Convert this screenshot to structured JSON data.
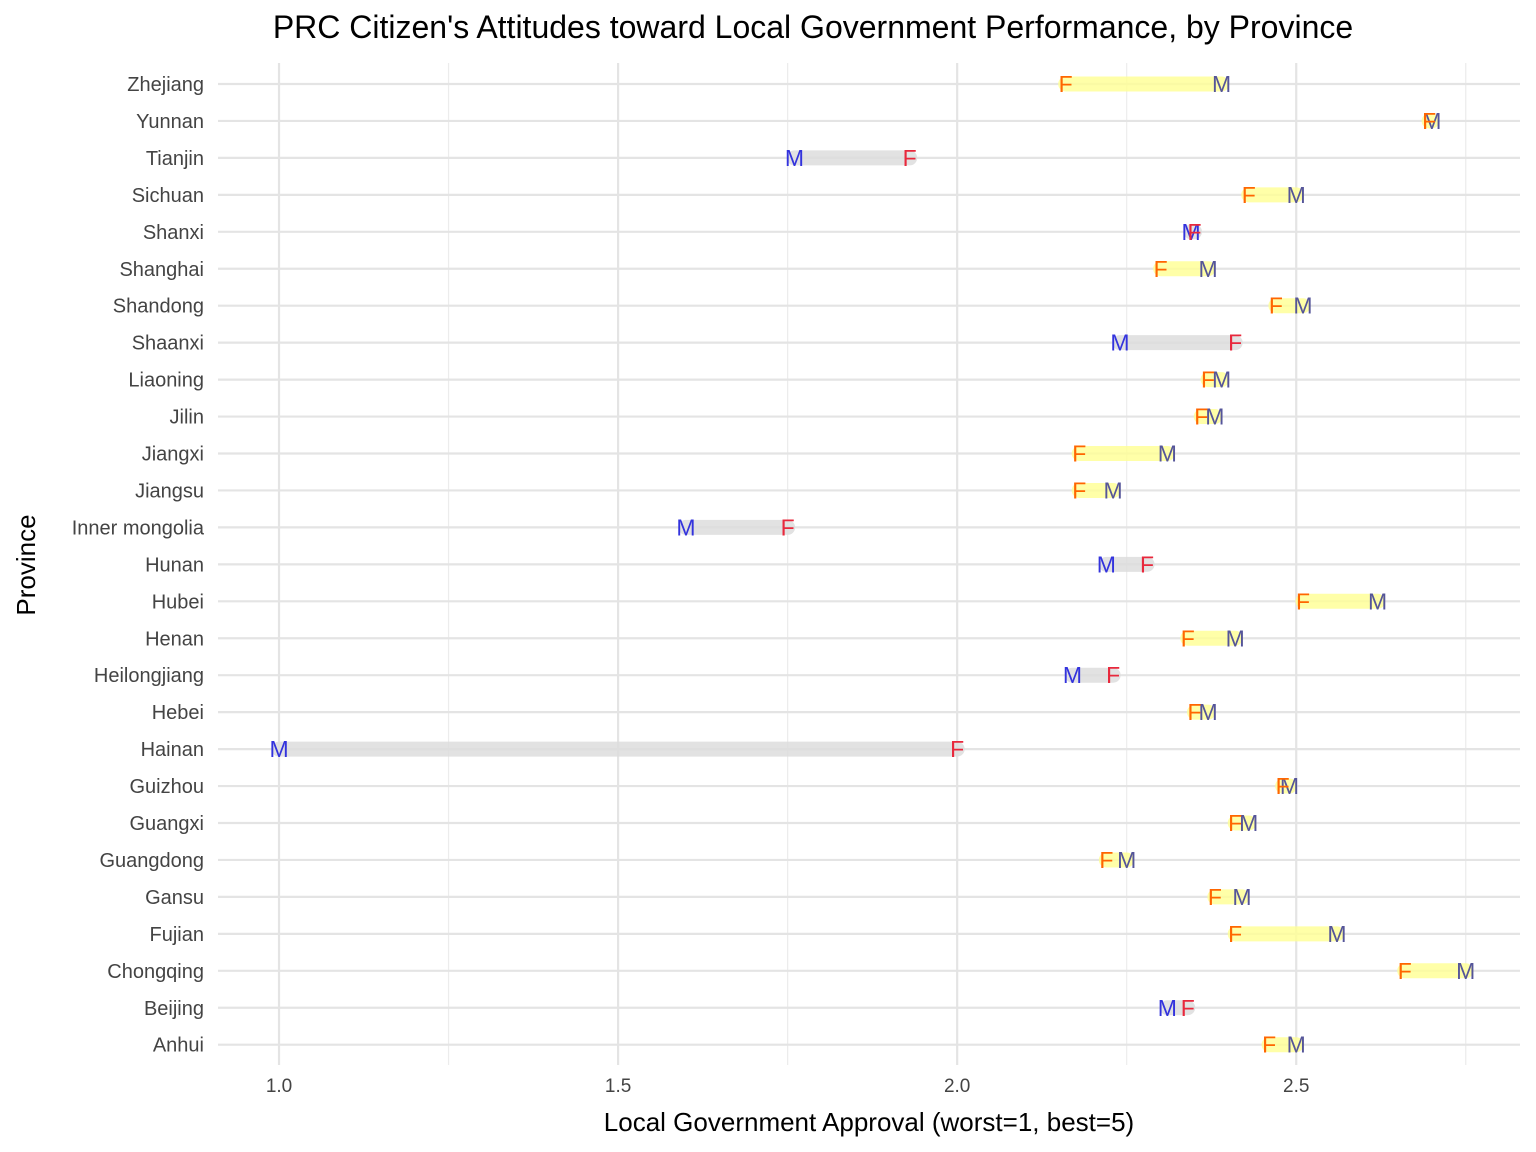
{
  "chart_data": {
    "type": "dumbbell",
    "title": "PRC Citizen's Attitudes toward Local Government Performance, by Province",
    "xlabel": "Local Government Approval (worst=1, best=5)",
    "ylabel": "Province",
    "xlim": [
      0.91,
      2.83
    ],
    "x_ticks": [
      1.0,
      1.5,
      2.0,
      2.5
    ],
    "x_tick_labels": [
      "1.0",
      "1.5",
      "2.0",
      "2.5"
    ],
    "grid": true,
    "marker_labels": {
      "female": "F",
      "male": "M"
    },
    "colors": {
      "female_lower": "#ff6600",
      "female_higher": "#e8283c",
      "male": "#3333dd",
      "male_highlight": "#555599",
      "segment_female_lower": "#ffff99",
      "segment_male_lower": "#dddddd"
    },
    "categories": [
      "Zhejiang",
      "Yunnan",
      "Tianjin",
      "Sichuan",
      "Shanxi",
      "Shanghai",
      "Shandong",
      "Shaanxi",
      "Liaoning",
      "Jilin",
      "Jiangxi",
      "Jiangsu",
      "Inner mongolia",
      "Hunan",
      "Hubei",
      "Henan",
      "Heilongjiang",
      "Hebei",
      "Hainan",
      "Guizhou",
      "Guangxi",
      "Guangdong",
      "Gansu",
      "Fujian",
      "Chongqing",
      "Beijing",
      "Anhui"
    ],
    "series": [
      {
        "name": "F",
        "values": [
          2.16,
          2.696,
          1.93,
          2.43,
          2.35,
          2.3,
          2.47,
          2.41,
          2.37,
          2.36,
          2.18,
          2.18,
          1.75,
          2.28,
          2.51,
          2.34,
          2.23,
          2.35,
          2.0,
          2.48,
          2.41,
          2.22,
          2.38,
          2.41,
          2.66,
          2.34,
          2.46
        ]
      },
      {
        "name": "M",
        "values": [
          2.39,
          2.7,
          1.76,
          2.5,
          2.345,
          2.37,
          2.51,
          2.24,
          2.39,
          2.38,
          2.31,
          2.23,
          1.6,
          2.22,
          2.62,
          2.41,
          2.17,
          2.37,
          1.0,
          2.49,
          2.43,
          2.25,
          2.42,
          2.56,
          2.75,
          2.31,
          2.5
        ]
      }
    ]
  }
}
